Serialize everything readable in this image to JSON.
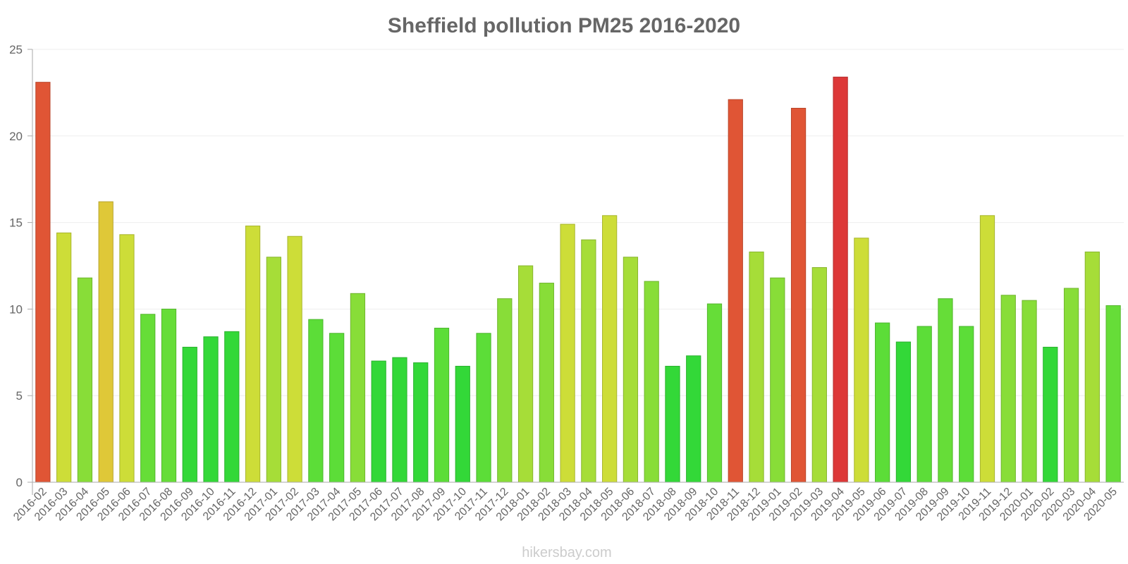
{
  "chart_data": {
    "type": "bar",
    "title": "Sheffield pollution PM25 2016-2020",
    "xlabel": "",
    "ylabel": "",
    "ylim": [
      0,
      25
    ],
    "yticks": [
      0,
      5,
      10,
      15,
      20,
      25
    ],
    "grid": true,
    "legend": "none",
    "categories": [
      "2016-02",
      "2016-03",
      "2016-04",
      "2016-05",
      "2016-06",
      "2016-07",
      "2016-08",
      "2016-09",
      "2016-10",
      "2016-11",
      "2016-12",
      "2017-01",
      "2017-02",
      "2017-03",
      "2017-04",
      "2017-05",
      "2017-06",
      "2017-07",
      "2017-08",
      "2017-09",
      "2017-10",
      "2017-11",
      "2017-12",
      "2018-01",
      "2018-02",
      "2018-03",
      "2018-04",
      "2018-05",
      "2018-06",
      "2018-07",
      "2018-08",
      "2018-09",
      "2018-10",
      "2018-11",
      "2018-12",
      "2019-01",
      "2019-02",
      "2019-03",
      "2019-04",
      "2019-05",
      "2019-06",
      "2019-07",
      "2019-08",
      "2019-09",
      "2019-10",
      "2019-11",
      "2019-12",
      "2020-01",
      "2020-02",
      "2020-03",
      "2020-04",
      "2020-05"
    ],
    "values": [
      23.1,
      14.4,
      11.8,
      16.2,
      14.3,
      9.7,
      10.0,
      7.8,
      8.4,
      8.7,
      14.8,
      13.0,
      14.2,
      9.4,
      8.6,
      10.9,
      7.0,
      7.2,
      6.9,
      8.9,
      6.7,
      8.6,
      10.6,
      12.5,
      11.5,
      14.9,
      14.0,
      15.4,
      13.0,
      11.6,
      6.7,
      7.3,
      10.3,
      22.1,
      13.3,
      11.8,
      21.6,
      12.4,
      23.4,
      14.1,
      9.2,
      8.1,
      9.0,
      10.6,
      9.0,
      15.4,
      10.8,
      10.5,
      7.8,
      11.2,
      13.3,
      10.2
    ],
    "colors": [
      "#e05535",
      "#cddd38",
      "#88dd38",
      "#dfc838",
      "#cddd38",
      "#66dd38",
      "#66dd38",
      "#33d838",
      "#33d838",
      "#33d838",
      "#cddd38",
      "#a6dd38",
      "#cddd38",
      "#5cdd38",
      "#5cdd38",
      "#88dd38",
      "#33d838",
      "#33d838",
      "#33d838",
      "#5cdd38",
      "#33d838",
      "#5cdd38",
      "#88dd38",
      "#a6dd38",
      "#88dd38",
      "#cddd38",
      "#a6dd38",
      "#cddd38",
      "#a6dd38",
      "#88dd38",
      "#33d838",
      "#33d838",
      "#66dd38",
      "#e05535",
      "#a6dd38",
      "#88dd38",
      "#e05535",
      "#a6dd38",
      "#dd3838",
      "#cddd38",
      "#5cdd38",
      "#33d838",
      "#5cdd38",
      "#66dd38",
      "#5cdd38",
      "#cddd38",
      "#88dd38",
      "#88dd38",
      "#33d838",
      "#88dd38",
      "#a6dd38",
      "#66dd38"
    ],
    "watermark": "hikersbay.com"
  }
}
